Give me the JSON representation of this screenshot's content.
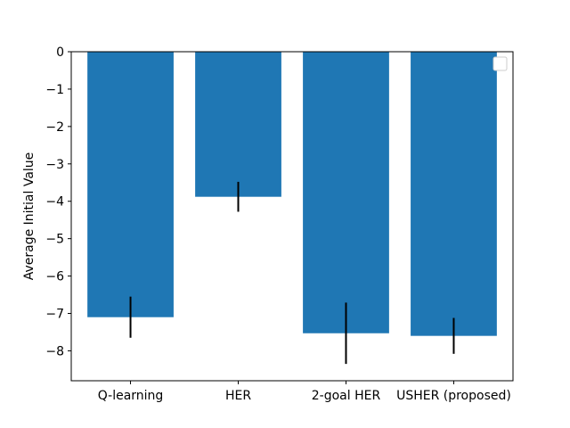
{
  "chart_data": {
    "type": "bar",
    "title": "",
    "xlabel": "",
    "ylabel": "Average Initial Value",
    "categories": [
      "Q-learning",
      "HER",
      "2-goal HER",
      "USHER (proposed)"
    ],
    "values": [
      -7.1,
      -3.88,
      -7.53,
      -7.6
    ],
    "error": [
      0.55,
      0.4,
      0.82,
      0.48
    ],
    "ylim": [
      -8.8,
      0
    ],
    "yticks": [
      0,
      -1,
      -2,
      -3,
      -4,
      -5,
      -6,
      -7,
      -8
    ],
    "ytick_labels": [
      "0",
      "−1",
      "−2",
      "−3",
      "−4",
      "−5",
      "−6",
      "−7",
      "−8"
    ],
    "bar_color": "#1f77b4",
    "error_color": "#000000",
    "grid": false,
    "legend": {
      "placement": "top-right",
      "entries": []
    }
  }
}
